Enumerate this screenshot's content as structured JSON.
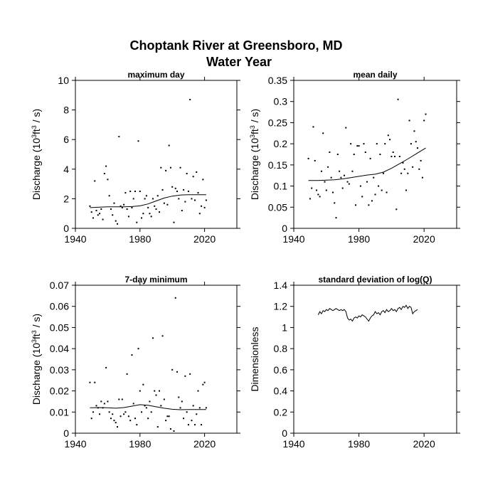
{
  "title_line1": "Choptank River at Greensboro, MD",
  "title_line2": "Water Year",
  "chart_data": [
    {
      "type": "scatter",
      "title": "maximum day",
      "xlabel": "",
      "ylabel": "Discharge (10^3 ft^3 / s)",
      "ylabel_parts": {
        "pre": "Discharge (10",
        "sup1": "3",
        "mid": "ft",
        "sup2": "3",
        "post": " / s)"
      },
      "xlim": [
        1940,
        2040
      ],
      "ylim": [
        0,
        10
      ],
      "xticks": [
        1940,
        1980,
        2020
      ],
      "yticks": [
        0,
        2,
        4,
        6,
        8,
        10
      ],
      "ytick_labels": [
        "0",
        "2",
        "4",
        "6",
        "8",
        "10"
      ],
      "points": [
        [
          1949,
          1.5
        ],
        [
          1950,
          1.1
        ],
        [
          1951,
          0.7
        ],
        [
          1952,
          3.2
        ],
        [
          1953,
          1.2
        ],
        [
          1954,
          0.9
        ],
        [
          1955,
          1.0
        ],
        [
          1956,
          1.3
        ],
        [
          1957,
          0.6
        ],
        [
          1958,
          3.7
        ],
        [
          1959,
          4.2
        ],
        [
          1960,
          3.3
        ],
        [
          1961,
          2.2
        ],
        [
          1962,
          1.3
        ],
        [
          1963,
          0.9
        ],
        [
          1964,
          1.7
        ],
        [
          1965,
          0.5
        ],
        [
          1966,
          0.3
        ],
        [
          1967,
          6.2
        ],
        [
          1968,
          1.5
        ],
        [
          1969,
          1.4
        ],
        [
          1970,
          1.6
        ],
        [
          1971,
          2.4
        ],
        [
          1972,
          1.3
        ],
        [
          1973,
          0.8
        ],
        [
          1974,
          2.5
        ],
        [
          1975,
          1.4
        ],
        [
          1976,
          2.0
        ],
        [
          1977,
          2.5
        ],
        [
          1978,
          0.4
        ],
        [
          1979,
          5.9
        ],
        [
          1980,
          2.5
        ],
        [
          1981,
          0.7
        ],
        [
          1982,
          1.0
        ],
        [
          1983,
          2.0
        ],
        [
          1984,
          2.2
        ],
        [
          1985,
          1.4
        ],
        [
          1986,
          1.0
        ],
        [
          1987,
          0.8
        ],
        [
          1988,
          2.0
        ],
        [
          1989,
          1.5
        ],
        [
          1990,
          1.3
        ],
        [
          1991,
          2.2
        ],
        [
          1992,
          1.1
        ],
        [
          1993,
          4.1
        ],
        [
          1994,
          2.6
        ],
        [
          1995,
          1.7
        ],
        [
          1996,
          3.9
        ],
        [
          1997,
          1.6
        ],
        [
          1998,
          5.6
        ],
        [
          1999,
          4.1
        ],
        [
          2000,
          2.8
        ],
        [
          2001,
          0.4
        ],
        [
          2002,
          2.7
        ],
        [
          2003,
          2.5
        ],
        [
          2004,
          2.0
        ],
        [
          2005,
          4.1
        ],
        [
          2006,
          1.2
        ],
        [
          2007,
          2.6
        ],
        [
          2008,
          1.8
        ],
        [
          2009,
          3.7
        ],
        [
          2010,
          2.5
        ],
        [
          2011,
          8.7
        ],
        [
          2012,
          2.0
        ],
        [
          2013,
          3.5
        ],
        [
          2014,
          1.9
        ],
        [
          2015,
          3.8
        ],
        [
          2016,
          2.4
        ],
        [
          2017,
          1.0
        ],
        [
          2018,
          1.5
        ],
        [
          2019,
          3.3
        ],
        [
          2020,
          1.4
        ],
        [
          2021,
          1.9
        ]
      ],
      "curve": [
        [
          1949,
          1.4
        ],
        [
          1955,
          1.43
        ],
        [
          1960,
          1.45
        ],
        [
          1965,
          1.45
        ],
        [
          1970,
          1.45
        ],
        [
          1975,
          1.47
        ],
        [
          1980,
          1.52
        ],
        [
          1985,
          1.65
        ],
        [
          1990,
          1.85
        ],
        [
          1995,
          2.05
        ],
        [
          2000,
          2.18
        ],
        [
          2005,
          2.25
        ],
        [
          2010,
          2.27
        ],
        [
          2015,
          2.27
        ],
        [
          2021,
          2.27
        ]
      ]
    },
    {
      "type": "scatter",
      "title": "mean daily",
      "xlabel": "",
      "ylabel": "Discharge (10^3 ft^3 / s)",
      "ylabel_parts": {
        "pre": "Discharge (10",
        "sup1": "3",
        "mid": "ft",
        "sup2": "3",
        "post": " / s)"
      },
      "xlim": [
        1940,
        2040
      ],
      "ylim": [
        0,
        0.35
      ],
      "xticks": [
        1940,
        1980,
        2020
      ],
      "yticks": [
        0,
        0.05,
        0.1,
        0.15,
        0.2,
        0.25,
        0.3,
        0.35
      ],
      "ytick_labels": [
        "0",
        "0.05",
        "0.1",
        "0.15",
        "0.2",
        "0.25",
        "0.3",
        "0.35"
      ],
      "points": [
        [
          1949,
          0.165
        ],
        [
          1950,
          0.07
        ],
        [
          1951,
          0.095
        ],
        [
          1952,
          0.24
        ],
        [
          1953,
          0.16
        ],
        [
          1954,
          0.09
        ],
        [
          1955,
          0.08
        ],
        [
          1956,
          0.075
        ],
        [
          1957,
          0.135
        ],
        [
          1958,
          0.225
        ],
        [
          1959,
          0.11
        ],
        [
          1960,
          0.09
        ],
        [
          1961,
          0.145
        ],
        [
          1962,
          0.18
        ],
        [
          1963,
          0.12
        ],
        [
          1964,
          0.085
        ],
        [
          1965,
          0.06
        ],
        [
          1966,
          0.025
        ],
        [
          1967,
          0.175
        ],
        [
          1968,
          0.135
        ],
        [
          1969,
          0.12
        ],
        [
          1970,
          0.095
        ],
        [
          1971,
          0.125
        ],
        [
          1972,
          0.238
        ],
        [
          1973,
          0.11
        ],
        [
          1974,
          0.105
        ],
        [
          1975,
          0.2
        ],
        [
          1976,
          0.135
        ],
        [
          1977,
          0.175
        ],
        [
          1978,
          0.055
        ],
        [
          1979,
          0.195
        ],
        [
          1980,
          0.195
        ],
        [
          1981,
          0.1
        ],
        [
          1982,
          0.075
        ],
        [
          1983,
          0.2
        ],
        [
          1984,
          0.18
        ],
        [
          1985,
          0.11
        ],
        [
          1986,
          0.055
        ],
        [
          1987,
          0.165
        ],
        [
          1988,
          0.065
        ],
        [
          1989,
          0.12
        ],
        [
          1990,
          0.08
        ],
        [
          1991,
          0.2
        ],
        [
          1992,
          0.1
        ],
        [
          1993,
          0.175
        ],
        [
          1994,
          0.09
        ],
        [
          1995,
          0.13
        ],
        [
          1996,
          0.2
        ],
        [
          1997,
          0.085
        ],
        [
          1998,
          0.22
        ],
        [
          1999,
          0.21
        ],
        [
          2000,
          0.17
        ],
        [
          2001,
          0.18
        ],
        [
          2002,
          0.17
        ],
        [
          2003,
          0.045
        ],
        [
          2004,
          0.305
        ],
        [
          2005,
          0.17
        ],
        [
          2006,
          0.13
        ],
        [
          2007,
          0.155
        ],
        [
          2008,
          0.14
        ],
        [
          2009,
          0.09
        ],
        [
          2010,
          0.13
        ],
        [
          2011,
          0.255
        ],
        [
          2012,
          0.2
        ],
        [
          2013,
          0.145
        ],
        [
          2014,
          0.23
        ],
        [
          2015,
          0.205
        ],
        [
          2016,
          0.19
        ],
        [
          2017,
          0.14
        ],
        [
          2018,
          0.16
        ],
        [
          2019,
          0.12
        ],
        [
          2020,
          0.255
        ],
        [
          2021,
          0.27
        ]
      ],
      "curve": [
        [
          1949,
          0.113
        ],
        [
          1955,
          0.113
        ],
        [
          1960,
          0.114
        ],
        [
          1965,
          0.115
        ],
        [
          1970,
          0.117
        ],
        [
          1975,
          0.12
        ],
        [
          1980,
          0.123
        ],
        [
          1985,
          0.126
        ],
        [
          1990,
          0.128
        ],
        [
          1995,
          0.133
        ],
        [
          2000,
          0.142
        ],
        [
          2005,
          0.153
        ],
        [
          2010,
          0.164
        ],
        [
          2015,
          0.176
        ],
        [
          2021,
          0.19
        ]
      ]
    },
    {
      "type": "scatter",
      "title": "7-day minimum",
      "xlabel": "",
      "ylabel": "Discharge (10^3 ft^3 / s)",
      "ylabel_parts": {
        "pre": "Discharge (10",
        "sup1": "3",
        "mid": "ft",
        "sup2": "3",
        "post": " / s)"
      },
      "xlim": [
        1940,
        2040
      ],
      "ylim": [
        0,
        0.07
      ],
      "xticks": [
        1940,
        1980,
        2020
      ],
      "yticks": [
        0,
        0.01,
        0.02,
        0.03,
        0.04,
        0.05,
        0.06,
        0.07
      ],
      "ytick_labels": [
        "0",
        "0.01",
        "0.02",
        "0.03",
        "0.04",
        "0.05",
        "0.06",
        "0.07"
      ],
      "points": [
        [
          1949,
          0.024
        ],
        [
          1950,
          0.007
        ],
        [
          1951,
          0.01
        ],
        [
          1952,
          0.024
        ],
        [
          1953,
          0.013
        ],
        [
          1954,
          0.012
        ],
        [
          1955,
          0.009
        ],
        [
          1956,
          0.015
        ],
        [
          1957,
          0.012
        ],
        [
          1958,
          0.014
        ],
        [
          1959,
          0.031
        ],
        [
          1960,
          0.015
        ],
        [
          1961,
          0.01
        ],
        [
          1962,
          0.007
        ],
        [
          1963,
          0.009
        ],
        [
          1964,
          0.006
        ],
        [
          1965,
          0.005
        ],
        [
          1966,
          0.003
        ],
        [
          1967,
          0.016
        ],
        [
          1968,
          0.008
        ],
        [
          1969,
          0.016
        ],
        [
          1970,
          0.009
        ],
        [
          1971,
          0.01
        ],
        [
          1972,
          0.028
        ],
        [
          1973,
          0.008
        ],
        [
          1974,
          0.006
        ],
        [
          1975,
          0.037
        ],
        [
          1976,
          0.014
        ],
        [
          1977,
          0.007
        ],
        [
          1978,
          0.004
        ],
        [
          1979,
          0.04
        ],
        [
          1980,
          0.02
        ],
        [
          1981,
          0.01
        ],
        [
          1982,
          0.023
        ],
        [
          1983,
          0.013
        ],
        [
          1984,
          0.012
        ],
        [
          1985,
          0.007
        ],
        [
          1986,
          0.015
        ],
        [
          1987,
          0.01
        ],
        [
          1988,
          0.045
        ],
        [
          1989,
          0.02
        ],
        [
          1990,
          0.018
        ],
        [
          1991,
          0.003
        ],
        [
          1992,
          0.02
        ],
        [
          1993,
          0.013
        ],
        [
          1994,
          0.046
        ],
        [
          1995,
          0.016
        ],
        [
          1996,
          0.006
        ],
        [
          1997,
          0.008
        ],
        [
          1998,
          0.008
        ],
        [
          1999,
          0.002
        ],
        [
          2000,
          0.03
        ],
        [
          2001,
          0.001
        ],
        [
          2002,
          0.064
        ],
        [
          2003,
          0.029
        ],
        [
          2004,
          0.017
        ],
        [
          2005,
          0.012
        ],
        [
          2006,
          0.015
        ],
        [
          2007,
          0.007
        ],
        [
          2008,
          0.027
        ],
        [
          2009,
          0.01
        ],
        [
          2010,
          0.004
        ],
        [
          2011,
          0.028
        ],
        [
          2012,
          0.006
        ],
        [
          2013,
          0.013
        ],
        [
          2014,
          0.004
        ],
        [
          2015,
          0.009
        ],
        [
          2016,
          0.02
        ],
        [
          2017,
          0.012
        ],
        [
          2018,
          0.004
        ],
        [
          2019,
          0.023
        ],
        [
          2020,
          0.024
        ],
        [
          2021,
          0.012
        ]
      ],
      "curve": [
        [
          1949,
          0.012
        ],
        [
          1955,
          0.0121
        ],
        [
          1960,
          0.012
        ],
        [
          1965,
          0.0118
        ],
        [
          1970,
          0.0121
        ],
        [
          1975,
          0.0128
        ],
        [
          1980,
          0.0135
        ],
        [
          1985,
          0.0132
        ],
        [
          1990,
          0.0125
        ],
        [
          1995,
          0.0118
        ],
        [
          2000,
          0.0113
        ],
        [
          2005,
          0.0111
        ],
        [
          2010,
          0.0112
        ],
        [
          2015,
          0.0112
        ],
        [
          2021,
          0.0112
        ]
      ]
    },
    {
      "type": "line",
      "title": "standard deviation of log(Q)",
      "xlabel": "",
      "ylabel": "Dimensionless",
      "xlim": [
        1940,
        2040
      ],
      "ylim": [
        0,
        1.4
      ],
      "xticks": [
        1940,
        1980,
        2020
      ],
      "yticks": [
        0,
        0.2,
        0.4,
        0.6,
        0.8,
        1,
        1.2,
        1.4
      ],
      "ytick_labels": [
        "0",
        "0.2",
        "0.4",
        "0.6",
        "0.8",
        "1",
        "1.2",
        "1.4"
      ],
      "x": [
        1955,
        1956,
        1957,
        1958,
        1959,
        1960,
        1961,
        1962,
        1963,
        1964,
        1965,
        1966,
        1967,
        1968,
        1969,
        1970,
        1971,
        1972,
        1973,
        1974,
        1975,
        1976,
        1977,
        1978,
        1979,
        1980,
        1981,
        1982,
        1983,
        1984,
        1985,
        1986,
        1987,
        1988,
        1989,
        1990,
        1991,
        1992,
        1993,
        1994,
        1995,
        1996,
        1997,
        1998,
        1999,
        2000,
        2001,
        2002,
        2003,
        2004,
        2005,
        2006,
        2007,
        2008,
        2009,
        2010,
        2011,
        2012,
        2013,
        2014,
        2015,
        2016
      ],
      "values": [
        1.12,
        1.15,
        1.13,
        1.16,
        1.15,
        1.17,
        1.16,
        1.18,
        1.17,
        1.16,
        1.17,
        1.18,
        1.17,
        1.16,
        1.17,
        1.16,
        1.17,
        1.15,
        1.09,
        1.07,
        1.08,
        1.06,
        1.09,
        1.1,
        1.09,
        1.11,
        1.1,
        1.12,
        1.11,
        1.1,
        1.08,
        1.06,
        1.09,
        1.11,
        1.12,
        1.15,
        1.13,
        1.14,
        1.12,
        1.15,
        1.16,
        1.14,
        1.17,
        1.15,
        1.16,
        1.18,
        1.16,
        1.17,
        1.15,
        1.18,
        1.19,
        1.17,
        1.2,
        1.19,
        1.21,
        1.18,
        1.2,
        1.19,
        1.13,
        1.15,
        1.16,
        1.17
      ]
    }
  ]
}
